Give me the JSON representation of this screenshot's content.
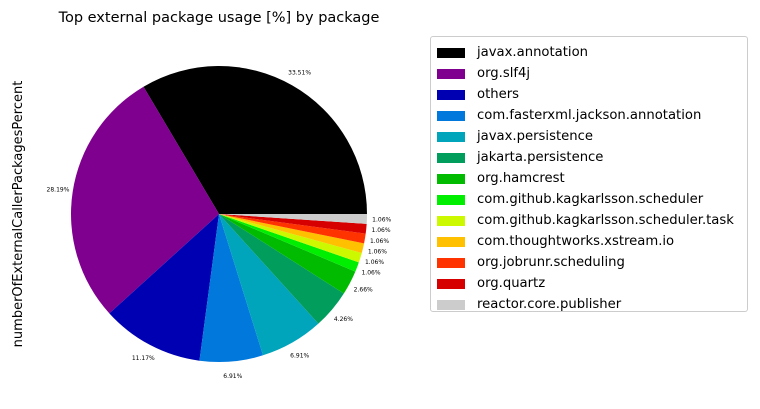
{
  "chart_data": {
    "type": "pie",
    "title": "Top external package usage [%] by package",
    "ylabel": "numberOfExternalCallerPackagesPercent",
    "legend_position": "right",
    "slices": [
      {
        "label": "javax.annotation",
        "value": 33.51,
        "value_label": "33.51%",
        "color": "#000000"
      },
      {
        "label": "org.slf4j",
        "value": 28.19,
        "value_label": "28.19%",
        "color": "#7f008f"
      },
      {
        "label": "others",
        "value": 11.17,
        "value_label": "11.17%",
        "color": "#0000b3"
      },
      {
        "label": "com.fasterxml.jackson.annotation",
        "value": 6.91,
        "value_label": "6.91%",
        "color": "#0078dc"
      },
      {
        "label": "javax.persistence",
        "value": 6.91,
        "value_label": "6.91%",
        "color": "#00a4bb"
      },
      {
        "label": "jakarta.persistence",
        "value": 4.26,
        "value_label": "4.26%",
        "color": "#009d5c"
      },
      {
        "label": "org.hamcrest",
        "value": 2.66,
        "value_label": "2.66%",
        "color": "#00bb00"
      },
      {
        "label": "com.github.kagkarlsson.scheduler",
        "value": 1.06,
        "value_label": "1.06%",
        "color": "#00ee00"
      },
      {
        "label": "com.github.kagkarlsson.scheduler.task",
        "value": 1.06,
        "value_label": "1.06%",
        "color": "#ccf900"
      },
      {
        "label": "com.thoughtworks.xstream.io",
        "value": 1.06,
        "value_label": "1.06%",
        "color": "#ffc000"
      },
      {
        "label": "org.jobrunr.scheduling",
        "value": 1.06,
        "value_label": "1.06%",
        "color": "#ff3300"
      },
      {
        "label": "org.quartz",
        "value": 1.06,
        "value_label": "1.06%",
        "color": "#d70000"
      },
      {
        "label": "reactor.core.publisher",
        "value": 1.06,
        "value_label": "1.06%",
        "color": "#cccccc"
      }
    ]
  }
}
